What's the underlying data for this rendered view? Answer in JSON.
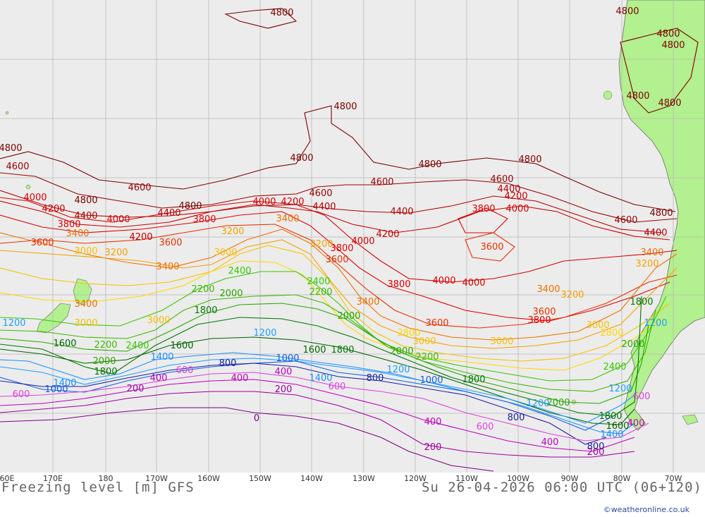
{
  "map": {
    "title_left": "Freezing level [m] GFS",
    "title_right": "Su 26-04-2026 06:00 UTC (06+120)",
    "credit": "©weatheronline.co.uk",
    "longitude_labels": [
      "60E",
      "170E",
      "180",
      "170W",
      "160W",
      "150W",
      "140W",
      "130W",
      "120W",
      "110W",
      "100W",
      "90W",
      "80W",
      "70W"
    ],
    "colors": {
      "ocean": "#ececec",
      "land": "#b3f08f",
      "grid": "#b8b8b8",
      "c4800": "#7a0000",
      "c4600": "#990000",
      "c4400": "#b40000",
      "c4200": "#c80000",
      "c4000": "#d40000",
      "c3800": "#e00000",
      "c3600": "#e83000",
      "c3400": "#f07000",
      "c3200": "#f5a000",
      "c3000": "#f9c000",
      "c2800": "#ffd700",
      "c2400": "#36c800",
      "c2200": "#3cb800",
      "c2000": "#28a800",
      "c1800": "#007800",
      "c1600": "#006400",
      "c1400": "#1e90ff",
      "c1200": "#1e9fff",
      "c1000": "#1060e0",
      "c800": "#2020a0",
      "c600": "#e040e0",
      "c400": "#c000c0",
      "c200": "#a000a0",
      "c0": "#800080"
    },
    "contour_labels": [
      {
        "text": "4800",
        "color": "c4800"
      },
      {
        "text": "4800",
        "color": "c4800"
      },
      {
        "text": "4800",
        "color": "c4800"
      },
      {
        "text": "4800",
        "color": "c4800"
      },
      {
        "text": "4800",
        "color": "c4800"
      },
      {
        "text": "4800",
        "color": "c4800"
      },
      {
        "text": "4800",
        "color": "c4800"
      },
      {
        "text": "4800",
        "color": "c4800"
      },
      {
        "text": "4800",
        "color": "c4800"
      },
      {
        "text": "4800",
        "color": "c4800"
      },
      {
        "text": "4800",
        "color": "c4800"
      },
      {
        "text": "4800",
        "color": "c4800"
      },
      {
        "text": "4800",
        "color": "c4800"
      },
      {
        "text": "4800",
        "color": "c4800"
      },
      {
        "text": "4600",
        "color": "c4600"
      },
      {
        "text": "4600",
        "color": "c4600"
      },
      {
        "text": "4600",
        "color": "c4600"
      },
      {
        "text": "4600",
        "color": "c4600"
      },
      {
        "text": "4600",
        "color": "c4600"
      },
      {
        "text": "4600",
        "color": "c4600"
      },
      {
        "text": "4400",
        "color": "c4400"
      },
      {
        "text": "4400",
        "color": "c4400"
      },
      {
        "text": "4400",
        "color": "c4400"
      },
      {
        "text": "4400",
        "color": "c4400"
      },
      {
        "text": "4400",
        "color": "c4400"
      },
      {
        "text": "4400",
        "color": "c4400"
      },
      {
        "text": "4200",
        "color": "c4200"
      },
      {
        "text": "4200",
        "color": "c4200"
      },
      {
        "text": "4200",
        "color": "c4200"
      },
      {
        "text": "4200",
        "color": "c4200"
      },
      {
        "text": "4200",
        "color": "c4200"
      },
      {
        "text": "4000",
        "color": "c4000"
      },
      {
        "text": "4000",
        "color": "c4000"
      },
      {
        "text": "4000",
        "color": "c4000"
      },
      {
        "text": "4000",
        "color": "c4000"
      },
      {
        "text": "4000",
        "color": "c4000"
      },
      {
        "text": "4000",
        "color": "c4000"
      },
      {
        "text": "4000",
        "color": "c4000"
      },
      {
        "text": "3800",
        "color": "c3800"
      },
      {
        "text": "3800",
        "color": "c3800"
      },
      {
        "text": "3800",
        "color": "c3800"
      },
      {
        "text": "3800",
        "color": "c3800"
      },
      {
        "text": "3800",
        "color": "c3800"
      },
      {
        "text": "3800",
        "color": "c3800"
      },
      {
        "text": "3600",
        "color": "c3600"
      },
      {
        "text": "3600",
        "color": "c3600"
      },
      {
        "text": "3600",
        "color": "c3600"
      },
      {
        "text": "3600",
        "color": "c3600"
      },
      {
        "text": "3600",
        "color": "c3600"
      },
      {
        "text": "3600",
        "color": "c3600"
      },
      {
        "text": "3400",
        "color": "c3400"
      },
      {
        "text": "3400",
        "color": "c3400"
      },
      {
        "text": "3400",
        "color": "c3400"
      },
      {
        "text": "3400",
        "color": "c3400"
      },
      {
        "text": "3400",
        "color": "c3400"
      },
      {
        "text": "3400",
        "color": "c3400"
      },
      {
        "text": "3400",
        "color": "c3400"
      },
      {
        "text": "3200",
        "color": "c3200"
      },
      {
        "text": "3200",
        "color": "c3200"
      },
      {
        "text": "3200",
        "color": "c3200"
      },
      {
        "text": "3200",
        "color": "c3200"
      },
      {
        "text": "3200",
        "color": "c3200"
      },
      {
        "text": "3000",
        "color": "c3000"
      },
      {
        "text": "3000",
        "color": "c3000"
      },
      {
        "text": "3000",
        "color": "c3000"
      },
      {
        "text": "3000",
        "color": "c3000"
      },
      {
        "text": "3000",
        "color": "c3000"
      },
      {
        "text": "3000",
        "color": "c3000"
      },
      {
        "text": "3000",
        "color": "c3000"
      },
      {
        "text": "2800",
        "color": "c2800"
      },
      {
        "text": "2800",
        "color": "c2800"
      },
      {
        "text": "2400",
        "color": "c2400"
      },
      {
        "text": "2400",
        "color": "c2400"
      },
      {
        "text": "2400",
        "color": "c2400"
      },
      {
        "text": "2400",
        "color": "c2400"
      },
      {
        "text": "2200",
        "color": "c2200"
      },
      {
        "text": "2200",
        "color": "c2200"
      },
      {
        "text": "2200",
        "color": "c2200"
      },
      {
        "text": "2200",
        "color": "c2200"
      },
      {
        "text": "2000",
        "color": "c2000"
      },
      {
        "text": "2000",
        "color": "c2000"
      },
      {
        "text": "2000",
        "color": "c2000"
      },
      {
        "text": "2000",
        "color": "c2000"
      },
      {
        "text": "2000",
        "color": "c2000"
      },
      {
        "text": "2000",
        "color": "c2000"
      },
      {
        "text": "1800",
        "color": "c1800"
      },
      {
        "text": "1800",
        "color": "c1800"
      },
      {
        "text": "1800",
        "color": "c1800"
      },
      {
        "text": "1800",
        "color": "c1800"
      },
      {
        "text": "1800",
        "color": "c1800"
      },
      {
        "text": "1800",
        "color": "c1800"
      },
      {
        "text": "1600",
        "color": "c1600"
      },
      {
        "text": "1600",
        "color": "c1600"
      },
      {
        "text": "1600",
        "color": "c1600"
      },
      {
        "text": "1600",
        "color": "c1600"
      },
      {
        "text": "1400",
        "color": "c1400"
      },
      {
        "text": "1400",
        "color": "c1400"
      },
      {
        "text": "1400",
        "color": "c1400"
      },
      {
        "text": "1400",
        "color": "c1400"
      },
      {
        "text": "1200",
        "color": "c1200"
      },
      {
        "text": "1200",
        "color": "c1200"
      },
      {
        "text": "1200",
        "color": "c1200"
      },
      {
        "text": "1200",
        "color": "c1200"
      },
      {
        "text": "1200",
        "color": "c1200"
      },
      {
        "text": "1200",
        "color": "c1200"
      },
      {
        "text": "1000",
        "color": "c1000"
      },
      {
        "text": "1000",
        "color": "c1000"
      },
      {
        "text": "1000",
        "color": "c1000"
      },
      {
        "text": "800",
        "color": "c800"
      },
      {
        "text": "800",
        "color": "c800"
      },
      {
        "text": "800",
        "color": "c800"
      },
      {
        "text": "800",
        "color": "c800"
      },
      {
        "text": "600",
        "color": "c600"
      },
      {
        "text": "600",
        "color": "c600"
      },
      {
        "text": "600",
        "color": "c600"
      },
      {
        "text": "600",
        "color": "c600"
      },
      {
        "text": "600",
        "color": "c600"
      },
      {
        "text": "400",
        "color": "c400"
      },
      {
        "text": "400",
        "color": "c400"
      },
      {
        "text": "400",
        "color": "c400"
      },
      {
        "text": "400",
        "color": "c400"
      },
      {
        "text": "400",
        "color": "c400"
      },
      {
        "text": "400",
        "color": "c400"
      },
      {
        "text": "200",
        "color": "c200"
      },
      {
        "text": "200",
        "color": "c200"
      },
      {
        "text": "200",
        "color": "c200"
      },
      {
        "text": "200",
        "color": "c200"
      },
      {
        "text": "0",
        "color": "c0"
      }
    ]
  }
}
